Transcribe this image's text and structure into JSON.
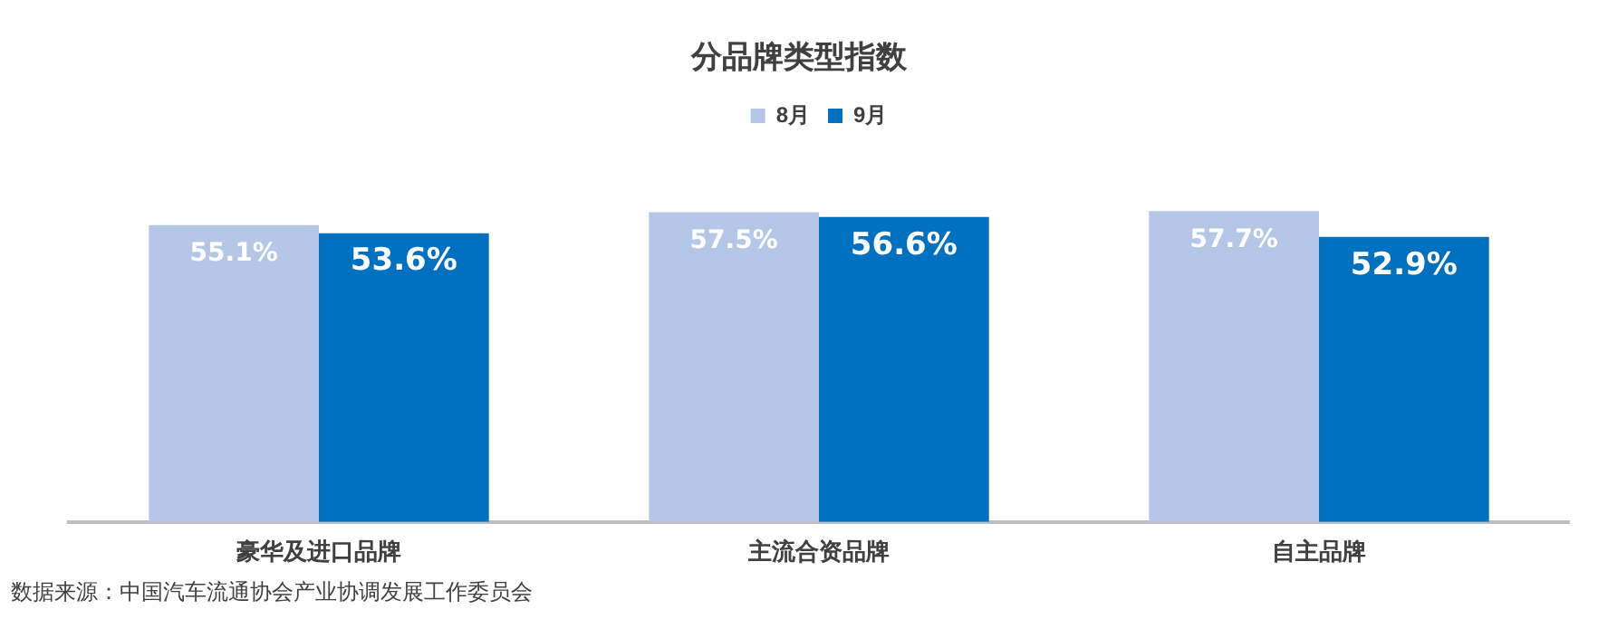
{
  "chart_data": {
    "type": "bar",
    "title": "分品牌类型指数",
    "categories": [
      "豪华及进口品牌",
      "主流合资品牌",
      "自主品牌"
    ],
    "series": [
      {
        "name": "8月",
        "color": "#b4c7e7",
        "values": [
          55.1,
          57.5,
          57.7
        ],
        "value_labels": [
          "55.1%",
          "57.5%",
          "57.7%"
        ]
      },
      {
        "name": "9月",
        "color": "#0070c0",
        "values": [
          53.6,
          56.6,
          52.9
        ],
        "value_labels": [
          "53.6%",
          "56.6%",
          "52.9%"
        ]
      }
    ],
    "legend": "top",
    "grid": false,
    "annotations": [
      "数据来源：中国汽车流通协会产业协调发展工作委员会"
    ]
  }
}
